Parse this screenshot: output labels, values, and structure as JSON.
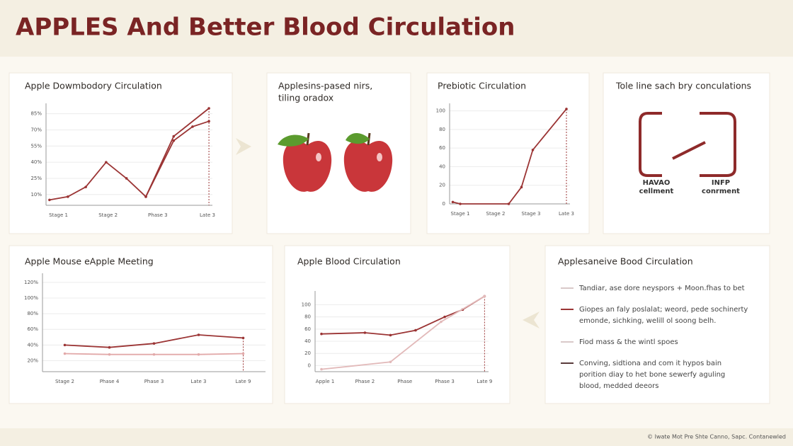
{
  "title": "APPLES And Better Blood Circulation",
  "footer": "© Iwate Mot Pre Shte Canno, Sapc. Contanewled",
  "apple_panel": {
    "title": "Applesins-pased nirs,",
    "subtitle": "tiling oradox"
  },
  "icon_panel": {
    "title": "Tole line sach bry conculations",
    "left_label": [
      "HAVAO",
      "cellment"
    ],
    "right_label": [
      "INFP",
      "conrment"
    ]
  },
  "legend_panel": {
    "title": "Applesaneive Bood Circulation",
    "items": [
      [
        "Tandiar, ase dore neyspors + Moon.fhas to bet"
      ],
      [
        "Giopes an faly poslalat; weord, pede sochinerty",
        "emonde, sichking, welill ol soong belh."
      ],
      [
        "Fiod mass & the wintl spoes"
      ],
      [
        "Conving, sidtiona and com it hypos bain",
        "porition diay to het bone sewerfy aguling",
        "blood, medded deeors"
      ]
    ]
  },
  "chart_data": [
    {
      "type": "line",
      "title": "Apple Dowmbodory Circulation",
      "xlim": [
        -0.25,
        3.1
      ],
      "ylim": [
        0,
        92
      ],
      "xticks": [
        {
          "value": 0,
          "label": "Stage 1"
        },
        {
          "value": 1,
          "label": "Stage 2"
        },
        {
          "value": 2,
          "label": "Phase 3"
        },
        {
          "value": 3,
          "label": "Late 3"
        }
      ],
      "yticks": [
        {
          "value": 10,
          "label": "10%"
        },
        {
          "value": 25,
          "label": "25%"
        },
        {
          "value": 40,
          "label": "40%"
        },
        {
          "value": 55,
          "label": "55%"
        },
        {
          "value": 70,
          "label": "70%"
        },
        {
          "value": 85,
          "label": "85%"
        }
      ],
      "grid": true,
      "series": [
        {
          "color": "#9b3434",
          "x": [
            -0.18,
            0.19,
            0.55,
            0.96,
            1.37,
            1.76,
            2.32,
            3.03
          ],
          "values": [
            5,
            8,
            17,
            40,
            25,
            8,
            64,
            90
          ]
        },
        {
          "color": "#9b3434",
          "x": [
            1.76,
            2.32,
            2.7,
            3.03
          ],
          "values": [
            8,
            60,
            73,
            78
          ]
        }
      ]
    },
    {
      "type": "line",
      "title": "Prebiotic Circulation",
      "xlim": [
        -0.3,
        3.1
      ],
      "ylim": [
        0,
        105
      ],
      "xticks": [
        {
          "value": 0,
          "label": "Stage 1"
        },
        {
          "value": 1,
          "label": "Stage 2"
        },
        {
          "value": 2,
          "label": "Stage 3"
        },
        {
          "value": 3,
          "label": "Late 3"
        }
      ],
      "yticks": [
        0,
        20,
        40,
        60,
        80,
        100
      ],
      "grid": true,
      "series": [
        {
          "color": "#9b3434",
          "x": [
            -0.21,
            0,
            1.37,
            1.73,
            2.05,
            3.0
          ],
          "values": [
            2,
            0,
            0,
            18,
            58,
            102
          ]
        }
      ]
    },
    {
      "type": "line",
      "title": "Apple Mouse eApple Meeting",
      "categories": [
        "Stage 2",
        "Phase 4",
        "Phase 3",
        "Late 3",
        "Late 9"
      ],
      "ylim": [
        6,
        128
      ],
      "yticks": [
        {
          "value": 20,
          "label": "20%"
        },
        {
          "value": 40,
          "label": "40%"
        },
        {
          "value": 60,
          "label": "60%"
        },
        {
          "value": 80,
          "label": "80%"
        },
        {
          "value": 100,
          "label": "100%"
        },
        {
          "value": 120,
          "label": "120%"
        }
      ],
      "grid": true,
      "series": [
        {
          "color": "#9b3434",
          "values": [
            40,
            37,
            42,
            53,
            49
          ]
        },
        {
          "color": "#e2a9a9",
          "values": [
            29,
            28,
            28,
            28,
            29
          ]
        }
      ]
    },
    {
      "type": "line",
      "title": "Apple Blood Circulation",
      "xlim": [
        -0.25,
        4.1
      ],
      "ylim": [
        -10,
        118
      ],
      "xticks": [
        {
          "value": 0,
          "label": "Apple 1"
        },
        {
          "value": 1,
          "label": "Phase 2"
        },
        {
          "value": 2,
          "label": "Phase"
        },
        {
          "value": 3,
          "label": "Phase 3"
        },
        {
          "value": 4,
          "label": "Late 9"
        }
      ],
      "yticks": [
        0,
        20,
        40,
        60,
        80,
        100
      ],
      "grid": true,
      "series": [
        {
          "color": "#9b3434",
          "x": [
            -0.09,
            1.0,
            1.64,
            2.27,
            3.0,
            3.45,
            4.0
          ],
          "values": [
            52,
            54,
            50,
            58,
            80,
            92,
            114
          ]
        },
        {
          "color": "#e2b9b9",
          "x": [
            -0.09,
            1.64,
            2.91,
            4.0
          ],
          "values": [
            -6,
            6,
            72,
            114
          ]
        }
      ]
    }
  ]
}
